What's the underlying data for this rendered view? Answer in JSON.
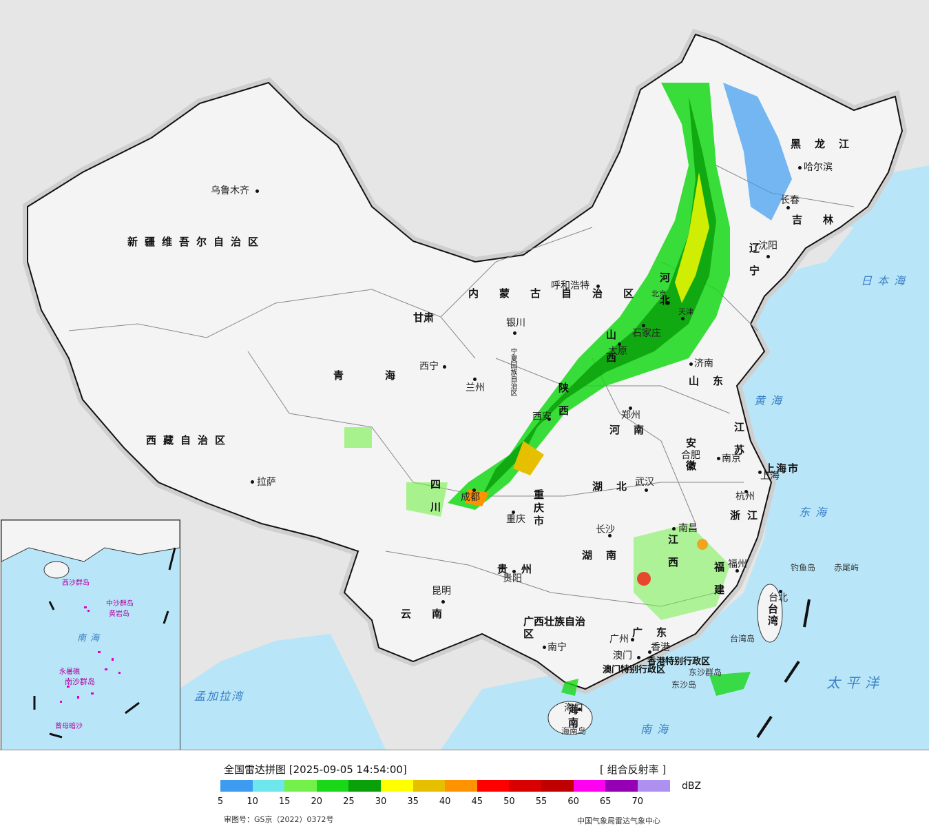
{
  "map": {
    "cities": [
      {
        "name": "乌鲁木齐"
      },
      {
        "name": "拉萨"
      },
      {
        "name": "西宁"
      },
      {
        "name": "兰州"
      },
      {
        "name": "银川"
      },
      {
        "name": "呼和浩特"
      },
      {
        "name": "哈尔滨"
      },
      {
        "name": "长春"
      },
      {
        "name": "沈阳"
      },
      {
        "name": "北京"
      },
      {
        "name": "天津"
      },
      {
        "name": "石家庄"
      },
      {
        "name": "太原"
      },
      {
        "name": "济南"
      },
      {
        "name": "郑州"
      },
      {
        "name": "西安"
      },
      {
        "name": "成都"
      },
      {
        "name": "重庆"
      },
      {
        "name": "贵阳"
      },
      {
        "name": "昆明"
      },
      {
        "name": "南宁"
      },
      {
        "name": "广州"
      },
      {
        "name": "澳门"
      },
      {
        "name": "香港"
      },
      {
        "name": "海口"
      },
      {
        "name": "武汉"
      },
      {
        "name": "长沙"
      },
      {
        "name": "南昌"
      },
      {
        "name": "合肥"
      },
      {
        "name": "南京"
      },
      {
        "name": "上海"
      },
      {
        "name": "杭州"
      },
      {
        "name": "福州"
      },
      {
        "name": "台北"
      }
    ],
    "provinces": [
      {
        "name": "新疆维吾尔自治区"
      },
      {
        "name": "西藏自治区"
      },
      {
        "name": "青海"
      },
      {
        "name": "甘肃"
      },
      {
        "name": "内蒙古自治区"
      },
      {
        "name": "黑龙江"
      },
      {
        "name": "吉林"
      },
      {
        "name": "辽宁"
      },
      {
        "name": "河北"
      },
      {
        "name": "山西"
      },
      {
        "name": "山东"
      },
      {
        "name": "河南"
      },
      {
        "name": "陕西"
      },
      {
        "name": "四川"
      },
      {
        "name": "重庆市"
      },
      {
        "name": "贵州"
      },
      {
        "name": "云南"
      },
      {
        "name": "广西壮族自治区"
      },
      {
        "name": "广东"
      },
      {
        "name": "湖北"
      },
      {
        "name": "湖南"
      },
      {
        "name": "江西"
      },
      {
        "name": "安徽"
      },
      {
        "name": "江苏"
      },
      {
        "name": "浙江"
      },
      {
        "name": "福建"
      },
      {
        "name": "上海市"
      },
      {
        "name": "海南"
      },
      {
        "name": "台湾"
      },
      {
        "name": "宁夏回族自治区"
      },
      {
        "name": "香港特别行政区"
      },
      {
        "name": "澳门特别行政区"
      }
    ],
    "seas": [
      {
        "name": "日本海"
      },
      {
        "name": "黄海"
      },
      {
        "name": "东海"
      },
      {
        "name": "太平洋"
      },
      {
        "name": "南海"
      },
      {
        "name": "孟加拉湾"
      }
    ],
    "islands": [
      {
        "name": "钓鱼岛"
      },
      {
        "name": "赤尾屿"
      },
      {
        "name": "台湾岛"
      },
      {
        "name": "东沙群岛"
      },
      {
        "name": "东沙岛"
      },
      {
        "name": "海南岛"
      }
    ],
    "inset_labels": [
      {
        "name": "南海"
      },
      {
        "name": "中沙群岛"
      },
      {
        "name": "黄岩岛"
      },
      {
        "name": "南沙群岛"
      },
      {
        "name": "曾母暗沙"
      },
      {
        "name": "永暑礁"
      },
      {
        "name": "西沙群岛"
      }
    ]
  },
  "legend": {
    "title": "全国雷达拼图 [2025-09-05 14:54:00]",
    "product": "[ 组合反射率 ]",
    "unit": "dBZ",
    "ticks": [
      "5",
      "10",
      "15",
      "20",
      "25",
      "30",
      "35",
      "40",
      "45",
      "50",
      "55",
      "60",
      "65",
      "70"
    ],
    "colors": [
      "#3d9bf0",
      "#6ee6ee",
      "#74f04a",
      "#18d818",
      "#0aa00a",
      "#ffff00",
      "#e6c000",
      "#ff9200",
      "#ff0000",
      "#d80000",
      "#c00000",
      "#ff00f0",
      "#9600b4",
      "#ae90f0"
    ],
    "approval": "审图号：GS京（2022）0372号",
    "credit": "中国气象局雷达气象中心"
  }
}
